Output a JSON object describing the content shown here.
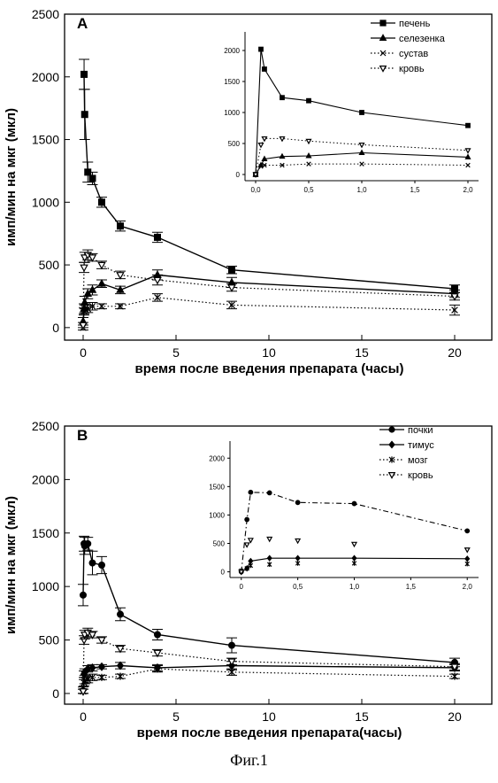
{
  "figure": {
    "caption": "Фиг.1"
  },
  "chart_data": [
    {
      "type": "line",
      "panel_label": "A",
      "xlabel": "время после введения препарата (часы)",
      "ylabel": "имп/мин на мкг (мкл)",
      "xlim": [
        -1,
        22
      ],
      "ylim": [
        -100,
        2500
      ],
      "xticks": [
        0,
        5,
        10,
        15,
        20
      ],
      "yticks": [
        0,
        500,
        1000,
        1500,
        2000,
        2500
      ],
      "legend_position": "inset top-right",
      "series": [
        {
          "name": "печень",
          "marker": "square-filled",
          "line": "solid",
          "x": [
            0.05,
            0.083,
            0.25,
            0.5,
            1,
            2,
            4,
            8,
            20
          ],
          "y": [
            2020,
            1700,
            1240,
            1190,
            1000,
            810,
            720,
            460,
            310
          ],
          "err": [
            120,
            200,
            80,
            50,
            40,
            40,
            40,
            30,
            30
          ]
        },
        {
          "name": "селезенка",
          "marker": "triangle-up-filled",
          "line": "solid",
          "x": [
            0,
            0.05,
            0.083,
            0.25,
            0.5,
            1,
            2,
            4,
            8,
            20
          ],
          "y": [
            50,
            150,
            200,
            270,
            300,
            350,
            300,
            420,
            360,
            270
          ],
          "err": [
            30,
            40,
            50,
            40,
            40,
            30,
            30,
            40,
            40,
            30
          ]
        },
        {
          "name": "сустав",
          "marker": "x",
          "line": "dotted",
          "x": [
            0,
            0.05,
            0.083,
            0.25,
            0.5,
            1,
            2,
            4,
            8,
            20
          ],
          "y": [
            0,
            130,
            150,
            150,
            170,
            170,
            170,
            240,
            180,
            140
          ],
          "err": [
            20,
            30,
            30,
            30,
            30,
            20,
            20,
            30,
            30,
            40
          ]
        },
        {
          "name": "кровь",
          "marker": "triangle-down-open",
          "line": "dotted",
          "x": [
            0,
            0.05,
            0.083,
            0.25,
            0.5,
            1,
            2,
            4,
            8,
            20
          ],
          "y": [
            20,
            480,
            560,
            580,
            560,
            500,
            420,
            380,
            320,
            250
          ],
          "err": [
            20,
            40,
            40,
            40,
            30,
            30,
            30,
            40,
            30,
            30
          ]
        }
      ],
      "inset": {
        "xlim": [
          -0.1,
          2.1
        ],
        "ylim": [
          -100,
          2300
        ],
        "xticks": [
          "0,0",
          "0,5",
          "1,0",
          "1,5",
          "2,0"
        ],
        "xtick_values": [
          0,
          0.5,
          1.0,
          1.5,
          2.0
        ],
        "yticks": [
          0,
          500,
          1000,
          1500,
          2000
        ],
        "series": [
          {
            "name": "печень",
            "marker": "square-filled",
            "line": "solid",
            "x": [
              0,
              0.05,
              0.083,
              0.25,
              0.5,
              1,
              2
            ],
            "y": [
              0,
              2020,
              1700,
              1240,
              1190,
              1000,
              790
            ]
          },
          {
            "name": "селезенка",
            "marker": "triangle-up-filled",
            "line": "solid",
            "x": [
              0,
              0.05,
              0.083,
              0.25,
              0.5,
              1,
              2
            ],
            "y": [
              0,
              150,
              250,
              290,
              300,
              350,
              280
            ]
          },
          {
            "name": "сустав",
            "marker": "x",
            "line": "dotted",
            "x": [
              0,
              0.05,
              0.083,
              0.25,
              0.5,
              1,
              2
            ],
            "y": [
              0,
              130,
              150,
              150,
              170,
              170,
              150
            ]
          },
          {
            "name": "кровь",
            "marker": "triangle-down-open",
            "line": "dotted",
            "x": [
              0,
              0.05,
              0.083,
              0.25,
              0.5,
              1,
              2
            ],
            "y": [
              0,
              480,
              580,
              580,
              540,
              480,
              390
            ]
          }
        ]
      }
    },
    {
      "type": "line",
      "panel_label": "B",
      "xlabel": "время после введения препарата(часы)",
      "ylabel": "имп/мин на мкг (мкл)",
      "xlim": [
        -1,
        22
      ],
      "ylim": [
        -100,
        2500
      ],
      "xticks": [
        0,
        5,
        10,
        15,
        20
      ],
      "yticks": [
        0,
        500,
        1000,
        1500,
        2000,
        2500
      ],
      "legend_position": "inset top-right",
      "series": [
        {
          "name": "почки",
          "marker": "circle-filled",
          "line": "solid",
          "x": [
            0,
            0.05,
            0.083,
            0.25,
            0.5,
            1,
            2,
            4,
            8,
            20
          ],
          "y": [
            920,
            1400,
            1380,
            1400,
            1220,
            1200,
            740,
            550,
            450,
            290
          ],
          "err": [
            100,
            70,
            80,
            60,
            110,
            80,
            60,
            50,
            70,
            40
          ]
        },
        {
          "name": "тимус",
          "marker": "diamond-filled",
          "line": "solid",
          "x": [
            0,
            0.05,
            0.083,
            0.25,
            0.5,
            1,
            2,
            4,
            8,
            20
          ],
          "y": [
            30,
            180,
            200,
            230,
            240,
            250,
            260,
            240,
            260,
            240
          ],
          "err": [
            30,
            30,
            30,
            30,
            30,
            20,
            30,
            30,
            40,
            30
          ]
        },
        {
          "name": "мозг",
          "marker": "asterisk",
          "line": "dotted",
          "x": [
            0,
            0.05,
            0.083,
            0.25,
            0.5,
            1,
            2,
            4,
            8,
            20
          ],
          "y": [
            20,
            100,
            120,
            130,
            150,
            150,
            160,
            230,
            200,
            160
          ],
          "err": [
            20,
            30,
            30,
            30,
            30,
            20,
            20,
            30,
            30,
            20
          ]
        },
        {
          "name": "кровь",
          "marker": "triangle-down-open",
          "line": "dotted",
          "x": [
            0,
            0.05,
            0.083,
            0.25,
            0.5,
            1,
            2,
            4,
            8,
            20
          ],
          "y": [
            20,
            500,
            550,
            570,
            550,
            500,
            420,
            380,
            300,
            250
          ],
          "err": [
            20,
            40,
            40,
            40,
            30,
            30,
            30,
            30,
            30,
            30
          ]
        }
      ],
      "inset": {
        "xlim": [
          -0.1,
          2.1
        ],
        "ylim": [
          -100,
          2300
        ],
        "xticks": [
          "0",
          "0,5",
          "1,0",
          "1,5",
          "2,0"
        ],
        "xtick_values": [
          0,
          0.5,
          1.0,
          1.5,
          2.0
        ],
        "yticks": [
          0,
          500,
          1000,
          1500,
          2000
        ],
        "series": [
          {
            "name": "почки",
            "marker": "circle-filled",
            "line": "dashdot",
            "x": [
              0,
              0.05,
              0.083,
              0.25,
              0.5,
              1,
              2
            ],
            "y": [
              0,
              920,
              1400,
              1390,
              1220,
              1200,
              720
            ]
          },
          {
            "name": "тимус",
            "marker": "diamond-filled",
            "line": "solid",
            "x": [
              0,
              0.05,
              0.083,
              0.25,
              0.5,
              1,
              2
            ],
            "y": [
              0,
              60,
              190,
              240,
              240,
              240,
              230
            ]
          },
          {
            "name": "мозг",
            "marker": "asterisk",
            "line": "none",
            "x": [
              0,
              0.05,
              0.083,
              0.25,
              0.5,
              1,
              2
            ],
            "y": [
              20,
              60,
              110,
              130,
              150,
              150,
              140
            ]
          },
          {
            "name": "кровь",
            "marker": "triangle-down-open",
            "line": "none",
            "x": [
              0,
              0.05,
              0.083,
              0.25,
              0.5,
              1,
              2
            ],
            "y": [
              0,
              480,
              560,
              580,
              550,
              490,
              390
            ]
          }
        ]
      }
    }
  ]
}
